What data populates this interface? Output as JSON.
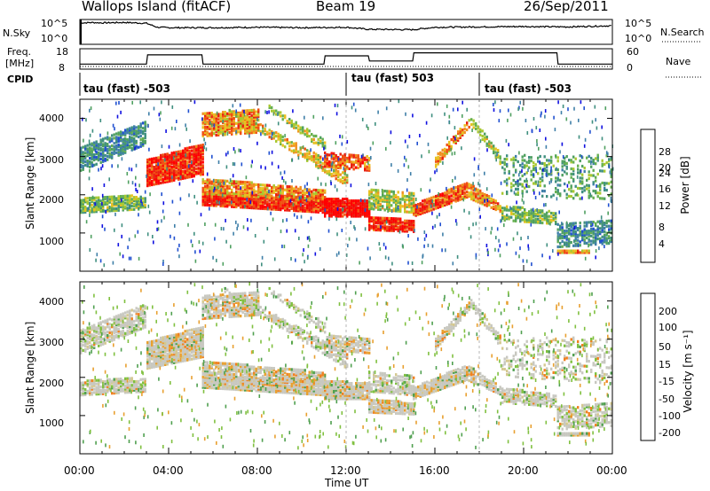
{
  "header": {
    "station": "Wallops Island (fitACF)",
    "beam": "Beam 19",
    "date": "26/Sep/2011"
  },
  "nsky_panel": {
    "left_label": "N.Sky",
    "left_ticks": [
      "10^5",
      "10^0"
    ],
    "right_label": "N.Search",
    "right_ticks": [
      "10^5",
      "10^0"
    ]
  },
  "freq_panel": {
    "left_label_1": "Freq.",
    "left_label_2": "[MHz]",
    "left_ticks": [
      "18",
      "8"
    ],
    "right_label": "Nave",
    "right_ticks": [
      "60",
      "0"
    ]
  },
  "cpid_panel": {
    "label": "CPID",
    "modes": [
      {
        "text": "tau (fast) -503",
        "start_hour": 0
      },
      {
        "text": "tau (fast) 503",
        "start_hour": 12.0
      },
      {
        "text": "tau (fast) -503",
        "start_hour": 18.0
      }
    ]
  },
  "colors": {
    "frame": "#000000",
    "power_scale": [
      "#1010e0",
      "#2050d0",
      "#3f7fa8",
      "#3f8f7f",
      "#4fa060",
      "#66b050",
      "#a8c830",
      "#e8c020",
      "#f09020",
      "#f05010",
      "#e82010",
      "#ff0000"
    ],
    "velocity_scale": [
      "#1010e0",
      "#2050d0",
      "#3c8a8c",
      "#50a050",
      "#80c040",
      "#b4d44c",
      "#c8c8c0",
      "#d4c890",
      "#e8a030",
      "#f08020",
      "#f04010",
      "#ff0000"
    ]
  },
  "chart_data": [
    {
      "type": "line",
      "title": "",
      "series": [
        {
          "name": "N.Sky",
          "x": [
            0,
            0.2,
            0.5,
            1,
            2,
            3,
            3.5,
            4,
            6,
            8,
            10,
            12,
            13,
            15,
            16,
            18,
            20,
            22,
            24
          ],
          "y": [
            5,
            4.9,
            5,
            4.9,
            5,
            4.8,
            3.8,
            3.7,
            3.7,
            3.8,
            3.7,
            3.8,
            3.3,
            3.2,
            3.8,
            3.9,
            4.0,
            3.9,
            4.2
          ]
        }
      ]
    },
    {
      "type": "line",
      "series": [
        {
          "name": "Freq.",
          "x": [
            0,
            3,
            3.05,
            5.5,
            5.55,
            11,
            11.05,
            13,
            13.05,
            15,
            15.05,
            21.5,
            21.55,
            24
          ],
          "y": [
            10.5,
            10.5,
            15,
            15,
            10.5,
            10.5,
            14.5,
            14.5,
            12,
            12,
            16,
            16,
            10.5,
            10.5
          ]
        }
      ]
    },
    {
      "type": "heatmap",
      "xlabel": "Time UT",
      "ylabel": "Slant Range [km]",
      "colorbar_label": "Power [dB]",
      "colorbar_ticks": [
        4,
        8,
        12,
        16,
        20,
        24,
        28
      ],
      "y_ticks": [
        1000,
        2000,
        3000,
        4000
      ],
      "ylim": [
        0,
        4500
      ],
      "x_ticks": [
        "00:00",
        "04:00",
        "08:00",
        "12:00",
        "16:00",
        "20:00",
        "00:00"
      ],
      "xlim": [
        0,
        24
      ]
    },
    {
      "type": "heatmap",
      "xlabel": "Time UT",
      "ylabel": "Slant Range [km]",
      "colorbar_label": "Velocity [m s-1]",
      "colorbar_ticks": [
        -200,
        -100,
        -50,
        -15,
        15,
        50,
        100,
        200
      ],
      "y_ticks": [
        1000,
        2000,
        3000,
        4000
      ],
      "ylim": [
        0,
        4500
      ],
      "x_ticks": [
        "00:00",
        "04:00",
        "08:00",
        "12:00",
        "16:00",
        "20:00",
        "00:00"
      ],
      "xlim": [
        0,
        24
      ]
    }
  ],
  "x_axis": {
    "ticks": [
      "00:00",
      "04:00",
      "08:00",
      "12:00",
      "16:00",
      "20:00",
      "00:00"
    ],
    "label": "Time UT"
  },
  "power_panel": {
    "ylabel": "Slant Range [km]",
    "y_ticks": [
      "1000",
      "2000",
      "3000",
      "4000"
    ],
    "cbar_label": "Power [dB]",
    "cbar_ticks": [
      "4",
      "8",
      "12",
      "16",
      "20",
      "24",
      "28"
    ]
  },
  "velocity_panel": {
    "ylabel": "Slant Range [km]",
    "y_ticks": [
      "1000",
      "2000",
      "3000",
      "4000"
    ],
    "cbar_label": "Velocity [m s⁻¹]",
    "cbar_ticks": [
      "200",
      "100",
      "50",
      "15",
      "-15",
      "-50",
      "-100",
      "-200"
    ]
  }
}
